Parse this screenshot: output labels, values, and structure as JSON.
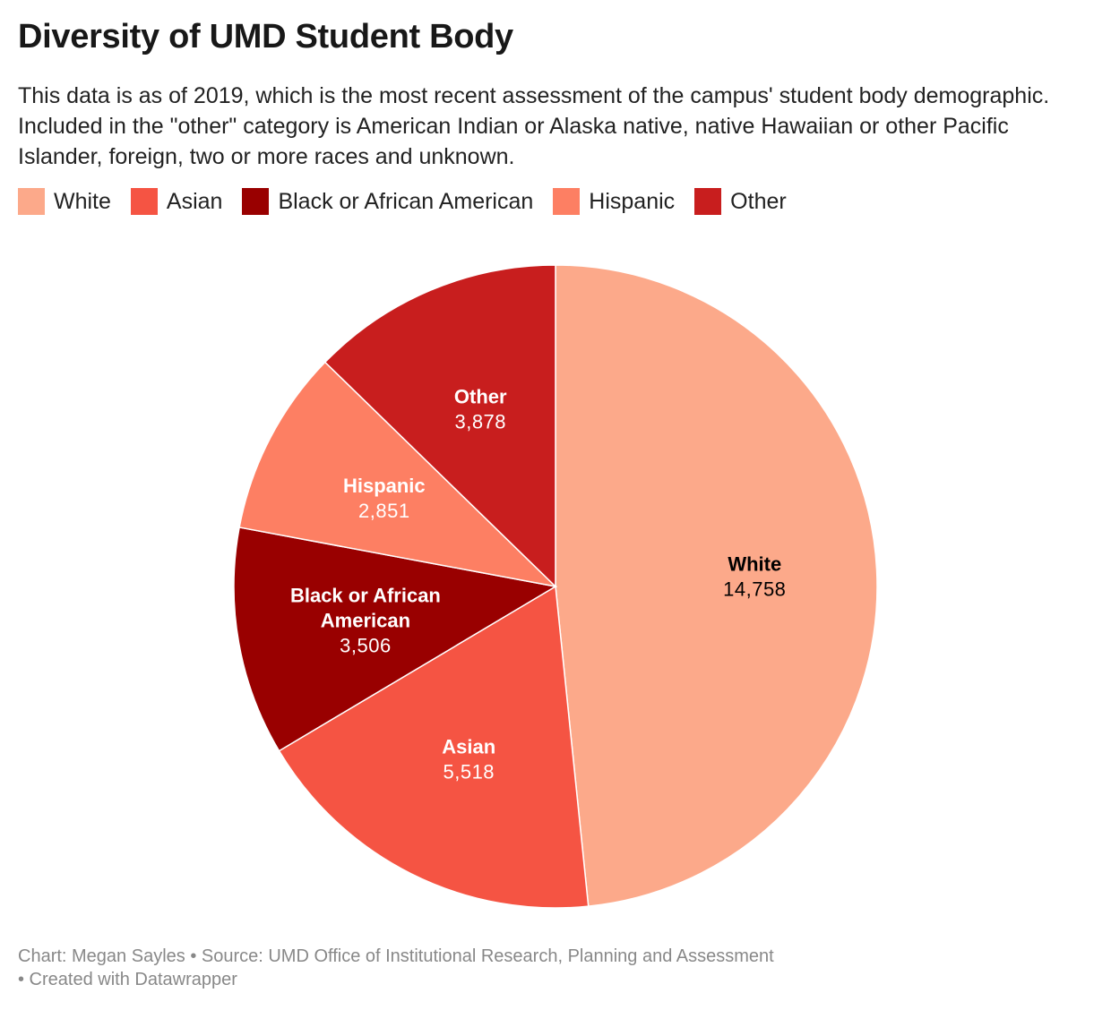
{
  "header": {
    "title": "Diversity of UMD Student Body",
    "description": "This data is as of 2019, which is the most recent assessment of the campus' student body demographic. Included in the \"other\" category is American Indian or Alaska native, native Hawaiian or other Pacific Islander, foreign, two or more races and unknown."
  },
  "legend": [
    {
      "label": "White",
      "color": "#fca98a"
    },
    {
      "label": "Asian",
      "color": "#f55443"
    },
    {
      "label": "Black or African American",
      "color": "#990000"
    },
    {
      "label": "Hispanic",
      "color": "#fd7f63"
    },
    {
      "label": "Other",
      "color": "#c81e1e"
    }
  ],
  "chart_data": {
    "type": "pie",
    "categories": [
      "White",
      "Asian",
      "Black or African American",
      "Hispanic",
      "Other"
    ],
    "values": [
      14758,
      5518,
      3506,
      2851,
      3878
    ],
    "value_labels": [
      "14,758",
      "5,518",
      "3,506",
      "2,851",
      "3,878"
    ],
    "label_lines": [
      [
        "White"
      ],
      [
        "Asian"
      ],
      [
        "Black or African",
        "American"
      ],
      [
        "Hispanic"
      ],
      [
        "Other"
      ]
    ],
    "label_colors": [
      "#000000",
      "#ffffff",
      "#ffffff",
      "#ffffff",
      "#ffffff"
    ],
    "colors": [
      "#fca98a",
      "#f55443",
      "#990000",
      "#fd7f63",
      "#c81e1e"
    ],
    "start": "12 o'clock",
    "direction": "clockwise"
  },
  "footer": {
    "line1": "Chart: Megan Sayles • Source: UMD Office of Institutional Research, Planning and Assessment",
    "line2": "• Created with Datawrapper"
  }
}
